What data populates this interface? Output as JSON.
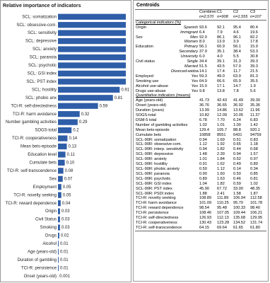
{
  "chart_data": {
    "type": "bar",
    "orientation": "horizontal",
    "title": "Relative importance of indicators",
    "color": "#2f5ea8",
    "categories": [
      "SCL: somatization",
      "SCL: obsessive-com.",
      "SCL: sensitivity",
      "SCL: depressive",
      "SCL: anxiety",
      "SCL: paranoia",
      "SCL: psychotic",
      "SCL: GSI index",
      "SCL: PST index",
      "SCL: hostility",
      "SCL: phobic anx",
      "TCI-R: self-directedness",
      "TCI-R: harm avoidance",
      "Number gambling activities",
      "SOGS-total",
      "TCI-R: cooperativeness",
      "Mean bets-episode",
      "Education level",
      "Cumulate bets",
      "TCI-R: self-transcendence",
      "Sex",
      "Employment",
      "TCI-R: novelty seeking",
      "TCI-R: reward dependence",
      "Origin",
      "Civil Status",
      "Smoking",
      "Drugs",
      "Alcohol",
      "Age (years-old)",
      "Duration of gambling",
      "TCI-R: persistence",
      "Onset (years-old)"
    ],
    "values": [
      1,
      1,
      1,
      1,
      1,
      1,
      1,
      1,
      1,
      0.91,
      0.81,
      0.59,
      0.32,
      0.29,
      0.2,
      0.14,
      0.13,
      0.11,
      0.1,
      0.08,
      0.07,
      0.05,
      0.05,
      0.04,
      0.03,
      0.03,
      0.03,
      0.02,
      0.01,
      0.01,
      0.01,
      0.01,
      0.001
    ],
    "value_labels": [
      null,
      null,
      null,
      null,
      null,
      null,
      null,
      null,
      null,
      "0.91",
      "0.81",
      "0.59",
      "0.32",
      "0.29",
      "0.2",
      "0.14",
      "0.13",
      "0.11",
      "0.10",
      "0.08",
      "0.07",
      "0.05",
      "0.05",
      "0.04",
      "0.03",
      "0.03",
      "0.03",
      "0.02",
      "0.01",
      "0.01",
      "0.01",
      "0.01",
      "0.001"
    ]
  },
  "table": {
    "title": "Centroids",
    "columns": [
      {
        "name": "Combined",
        "n": "n=2,570"
      },
      {
        "name": "C1",
        "n": "n=908"
      },
      {
        "name": "C2",
        "n": "n=1,555"
      },
      {
        "name": "C3",
        "n": "n=107"
      }
    ],
    "sections": [
      {
        "title": "Categorical indicators (%)",
        "rows": [
          {
            "group": "Origin",
            "label": "Spanish",
            "values": [
              "93.6",
              "92.1",
              "95.4",
              "80.4"
            ]
          },
          {
            "label": "Immigrant",
            "values": [
              "6.4",
              "7.9",
              "4.6",
              "19.6"
            ]
          },
          {
            "group": "Sex",
            "label": "Men",
            "values": [
              "92.0",
              "86.1",
              "96.1",
              "82.2"
            ]
          },
          {
            "label": "Women",
            "values": [
              "8.0",
              "13.9",
              "3.9",
              "17.8"
            ]
          },
          {
            "group": "Education",
            "label": "Primary",
            "values": [
              "56.1",
              "60.9",
              "56.1",
              "15.9"
            ]
          },
          {
            "label": "Secondary",
            "values": [
              "37.9",
              "35.1",
              "38.4",
              "53.3"
            ]
          },
          {
            "label": "University",
            "values": [
              "6.0",
              "4.0",
              "5.5",
              "30.8"
            ]
          },
          {
            "group": "Civil status",
            "label": "Single",
            "values": [
              "34.4",
              "39.1",
              "31.3",
              "39.3"
            ]
          },
          {
            "label": "Married",
            "values": [
              "51.5",
              "43.5",
              "57.0",
              "39.3"
            ]
          },
          {
            "label": "Divorced-widow",
            "values": [
              "14.1",
              "17.4",
              "11.7",
              "21.5"
            ]
          },
          {
            "group": "Employed",
            "label": "Yes",
            "values": [
              "59.3",
              "49.0",
              "63.9",
              "81.3"
            ]
          },
          {
            "group": "Smoking use",
            "label": "Yes",
            "values": [
              "64.9",
              "66.6",
              "65.9",
              "35.5"
            ]
          },
          {
            "group": "Alcohol use-abuse",
            "label": "Yes",
            "values": [
              "15.0",
              "17.1",
              "14.7",
              "1.9"
            ]
          },
          {
            "group": "Drugs use-abuse",
            "label": "Yes",
            "values": [
              "9.8",
              "13.8",
              "7.8",
              "5.6"
            ]
          }
        ]
      },
      {
        "title": "Quantitative indicators (means)",
        "rows": [
          {
            "group": "Age (years-old)",
            "values": [
              "41.73",
              "42.43",
              "41.49",
              "39.30"
            ]
          },
          {
            "group": "Onset (years-old)",
            "values": [
              "36.76",
              "36.65",
              "36.92",
              "35.36"
            ]
          },
          {
            "group": "Duration (years)",
            "values": [
              "13.99",
              "14.86",
              "13.62",
              "11.96"
            ]
          },
          {
            "group": "SOGS-total",
            "values": [
              "10.82",
              "12.09",
              "10.05",
              "11.37"
            ]
          },
          {
            "group": "DSM-5 total",
            "values": [
              "6.78",
              "7.70",
              "6.24",
              "6.83"
            ]
          },
          {
            "group": "Number of gambling activities",
            "values": [
              "1.02",
              "1.01",
              "1.00",
              "1.42"
            ]
          },
          {
            "group": "Mean bets-episode",
            "values": [
              "129.4",
              "105.7",
              "88.8",
              "920.1"
            ]
          },
          {
            "group": "Cumulate bets",
            "values": [
              "10858",
              "8551",
              "6431",
              "94759"
            ]
          },
          {
            "group": "SCL-90R: somatization",
            "values": [
              "0.94",
              "1.69",
              "0.51",
              "0.83"
            ]
          },
          {
            "group": "SCL-90R: obsessive-com.",
            "values": [
              "1.12",
              "1.92",
              "0.65",
              "1.18"
            ]
          },
          {
            "group": "SCL-90R: interp. sensitivity",
            "values": [
              "0.94",
              "1.82",
              "0.44",
              "0.68"
            ]
          },
          {
            "group": "SCL-90R: depressive",
            "values": [
              "1.48",
              "2.39",
              "0.94",
              "1.57"
            ]
          },
          {
            "group": "SCL-90R: anxiety",
            "values": [
              "1.01",
              "1.84",
              "0.52",
              "0.97"
            ]
          },
          {
            "group": "SCL-90R: hostility",
            "values": [
              "0.91",
              "1.62",
              "0.49",
              "0.89"
            ]
          },
          {
            "group": "SCL-90R: phobic anxiety",
            "values": [
              "0.50",
              "1.12",
              "0.14",
              "0.34"
            ]
          },
          {
            "group": "SCL-90R: paranoia",
            "values": [
              "0.90",
              "1.60",
              "0.50",
              "0.85"
            ]
          },
          {
            "group": "SCL-90R: psychotic",
            "values": [
              "0.89",
              "1.63",
              "0.46",
              "0.81"
            ]
          },
          {
            "group": "SCL-90R: GSI index",
            "values": [
              "1.04",
              "1.82",
              "0.59",
              "1.02"
            ]
          },
          {
            "group": "SCL-90R: PST index",
            "values": [
              "45.90",
              "67.72",
              "33.00",
              "48.35"
            ]
          },
          {
            "group": "SCL-90R: PSDI index",
            "values": [
              "1.88",
              "2.41",
              "1.58",
              "1.87"
            ]
          },
          {
            "group": "TCI-R: novelty seeking",
            "values": [
              "108.89",
              "111.89",
              "106.94",
              "112.58"
            ]
          },
          {
            "group": "TCI-R: harm avoidance",
            "values": [
              "101.09",
              "110.25",
              "95.70",
              "101.78"
            ]
          },
          {
            "group": "TCI-R: reward dependence",
            "values": [
              "98.54",
              "95.48",
              "100.33",
              "98.40"
            ]
          },
          {
            "group": "TCI-R: persistence",
            "values": [
              "108.46",
              "107.05",
              "109.44",
              "106.21"
            ]
          },
          {
            "group": "TCI-R: self-directedness",
            "values": [
              "126.93",
              "112.13",
              "135.68",
              "129.95"
            ]
          },
          {
            "group": "TCI-R: cooperativeness",
            "values": [
              "130.43",
              "123.28",
              "134.52",
              "131.74"
            ]
          },
          {
            "group": "TCI-R: self-transcendence",
            "values": [
              "64.15",
              "69.64",
              "61.65",
              "61.80"
            ]
          }
        ]
      }
    ]
  }
}
